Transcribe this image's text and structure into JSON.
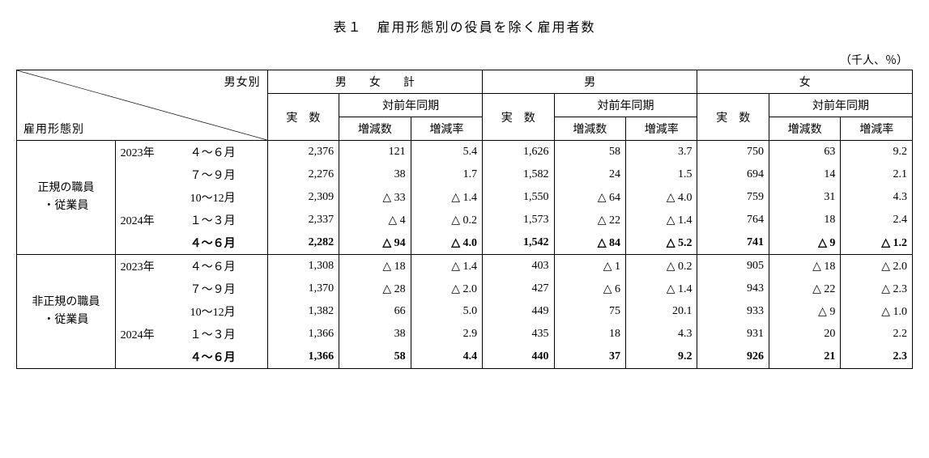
{
  "title": "表１　雇用形態別の役員を除く雇用者数",
  "unit": "（千人、％）",
  "header": {
    "diag_top": "男女別",
    "diag_bottom": "雇用形態別",
    "g1": "男　　女　　計",
    "g2": "男",
    "g3": "女",
    "jissu": "実　数",
    "taizen": "対前年同期",
    "zougen_su": "増減数",
    "zougen_ritsu": "増減率"
  },
  "cat1": "正規の職員\n・従業員",
  "cat2": "非正規の職員\n・従業員",
  "rows1": [
    {
      "year": "2023年",
      "period": "４～６月",
      "t": [
        "2,376",
        "121",
        "5.4"
      ],
      "m": [
        "1,626",
        "58",
        "3.7"
      ],
      "f": [
        "750",
        "63",
        "9.2"
      ]
    },
    {
      "year": "",
      "period": "７～９月",
      "t": [
        "2,276",
        "38",
        "1.7"
      ],
      "m": [
        "1,582",
        "24",
        "1.5"
      ],
      "f": [
        "694",
        "14",
        "2.1"
      ]
    },
    {
      "year": "",
      "period": "10～12月",
      "t": [
        "2,309",
        "△ 33",
        "△ 1.4"
      ],
      "m": [
        "1,550",
        "△ 64",
        "△ 4.0"
      ],
      "f": [
        "759",
        "31",
        "4.3"
      ]
    },
    {
      "year": "2024年",
      "period": "１～３月",
      "t": [
        "2,337",
        "△ 4",
        "△ 0.2"
      ],
      "m": [
        "1,573",
        "△ 22",
        "△ 1.4"
      ],
      "f": [
        "764",
        "18",
        "2.4"
      ]
    },
    {
      "year": "",
      "period": "４～６月",
      "t": [
        "2,282",
        "△ 94",
        "△ 4.0"
      ],
      "m": [
        "1,542",
        "△ 84",
        "△ 5.2"
      ],
      "f": [
        "741",
        "△ 9",
        "△ 1.2"
      ],
      "bold": true
    }
  ],
  "rows2": [
    {
      "year": "2023年",
      "period": "４～６月",
      "t": [
        "1,308",
        "△ 18",
        "△ 1.4"
      ],
      "m": [
        "403",
        "△ 1",
        "△ 0.2"
      ],
      "f": [
        "905",
        "△ 18",
        "△ 2.0"
      ]
    },
    {
      "year": "",
      "period": "７～９月",
      "t": [
        "1,370",
        "△ 28",
        "△ 2.0"
      ],
      "m": [
        "427",
        "△ 6",
        "△ 1.4"
      ],
      "f": [
        "943",
        "△ 22",
        "△ 2.3"
      ]
    },
    {
      "year": "",
      "period": "10～12月",
      "t": [
        "1,382",
        "66",
        "5.0"
      ],
      "m": [
        "449",
        "75",
        "20.1"
      ],
      "f": [
        "933",
        "△ 9",
        "△ 1.0"
      ]
    },
    {
      "year": "2024年",
      "period": "１～３月",
      "t": [
        "1,366",
        "38",
        "2.9"
      ],
      "m": [
        "435",
        "18",
        "4.3"
      ],
      "f": [
        "931",
        "20",
        "2.2"
      ]
    },
    {
      "year": "",
      "period": "４～６月",
      "t": [
        "1,366",
        "58",
        "4.4"
      ],
      "m": [
        "440",
        "37",
        "9.2"
      ],
      "f": [
        "926",
        "21",
        "2.3"
      ],
      "bold": true
    }
  ]
}
